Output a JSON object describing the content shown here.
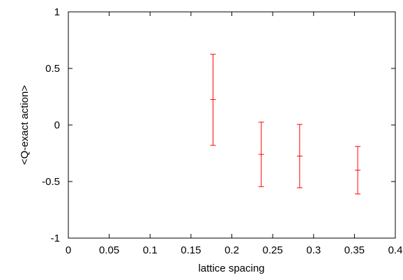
{
  "chart_data": {
    "type": "scatter",
    "title": "",
    "xlabel": "lattice spacing",
    "ylabel": "<Q-exact action>",
    "xlim": [
      0,
      0.4
    ],
    "ylim": [
      -1,
      1
    ],
    "xticks": [
      "0",
      "0.05",
      "0.1",
      "0.15",
      "0.2",
      "0.25",
      "0.3",
      "0.35",
      "0.4"
    ],
    "yticks": [
      "-1",
      "-0.5",
      "0",
      "0.5",
      "1"
    ],
    "xtick_values": [
      0,
      0.05,
      0.1,
      0.15,
      0.2,
      0.25,
      0.3,
      0.35,
      0.4
    ],
    "ytick_values": [
      -1,
      -0.5,
      0,
      0.5,
      1
    ],
    "grid": false,
    "series": [
      {
        "color": "#ff0000",
        "points": [
          {
            "x": 0.177,
            "y": 0.225,
            "err_low": -0.18,
            "err_high": 0.625
          },
          {
            "x": 0.236,
            "y": -0.26,
            "err_low": -0.545,
            "err_high": 0.025
          },
          {
            "x": 0.283,
            "y": -0.275,
            "err_low": -0.555,
            "err_high": 0.005
          },
          {
            "x": 0.354,
            "y": -0.4,
            "err_low": -0.61,
            "err_high": -0.19
          }
        ]
      }
    ]
  }
}
